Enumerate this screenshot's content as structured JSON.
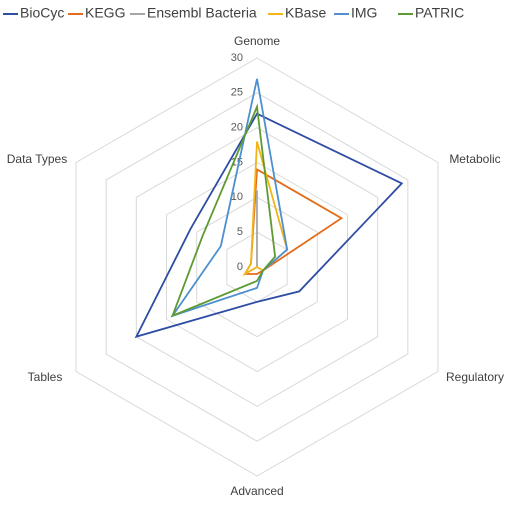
{
  "chart_data": {
    "type": "radar",
    "categories": [
      "Genome",
      "Metabolic",
      "Regulatory",
      "Advanced",
      "Tables",
      "Data Types"
    ],
    "series": [
      {
        "name": "BioCyc",
        "color": "#2f4ea3",
        "values": [
          22,
          24,
          7,
          5,
          20,
          11
        ]
      },
      {
        "name": "KEGG",
        "color": "#e36c1a",
        "values": [
          14,
          14,
          1,
          1,
          2,
          1
        ]
      },
      {
        "name": "Ensembl Bacteria",
        "color": "#a5a5a5",
        "values": [
          11,
          0,
          0,
          0,
          0,
          0
        ]
      },
      {
        "name": "KBase",
        "color": "#f2b417",
        "values": [
          18,
          5,
          1,
          0,
          2,
          1
        ]
      },
      {
        "name": "IMG",
        "color": "#4e8fcf",
        "values": [
          27,
          5,
          1,
          3,
          14,
          6
        ]
      },
      {
        "name": "PATRIC",
        "color": "#5d9b32",
        "values": [
          23,
          3,
          1,
          2,
          14,
          9
        ]
      }
    ],
    "ylim": [
      0,
      30
    ],
    "yticks": [
      0,
      5,
      10,
      15,
      20,
      25,
      30
    ],
    "grid": true
  }
}
